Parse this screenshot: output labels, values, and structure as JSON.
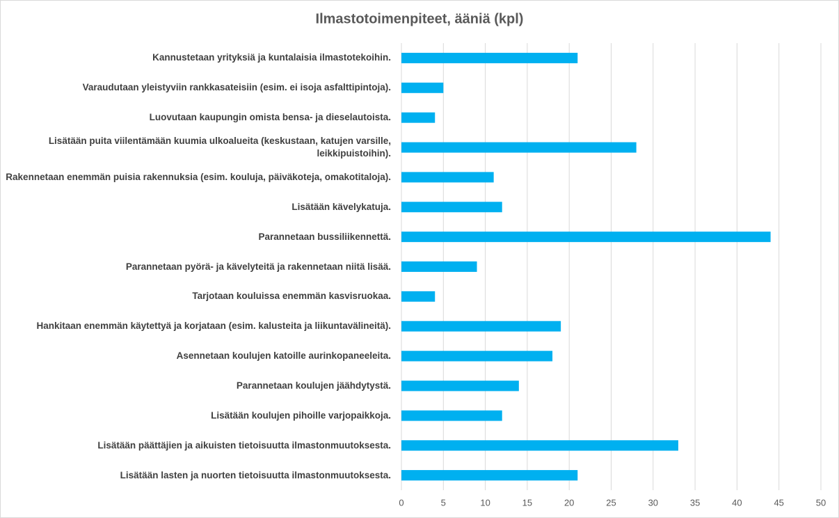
{
  "chart_data": {
    "type": "bar",
    "orientation": "horizontal",
    "title": "Ilmastotoimenpiteet, ääniä (kpl)",
    "categories": [
      "Kannustetaan yrityksiä ja kuntalaisia ilmastotekoihin.",
      "Varaudutaan yleistyviin rankkasateisiin (esim. ei isoja asfalttipintoja).",
      "Luovutaan kaupungin omista bensa- ja dieselautoista.",
      "Lisätään puita viilentämään kuumia ulkoalueita (keskustaan, katujen varsille, leikkipuistoihin).",
      "Rakennetaan enemmän puisia rakennuksia (esim. kouluja, päiväkoteja, omakotitaloja).",
      "Lisätään kävelykatuja.",
      "Parannetaan bussiliikennettä.",
      "Parannetaan pyörä- ja kävelyteitä ja rakennetaan niitä lisää.",
      "Tarjotaan kouluissa enemmän kasvisruokaa.",
      "Hankitaan enemmän käytettyä ja korjataan (esim. kalusteita ja liikuntavälineitä).",
      "Asennetaan koulujen katoille aurinkopaneeleita.",
      "Parannetaan koulujen jäähdytystä.",
      "Lisätään koulujen pihoille varjopaikkoja.",
      "Lisätään päättäjien ja aikuisten tietoisuutta ilmastonmuutoksesta.",
      "Lisätään lasten ja nuorten tietoisuutta ilmastonmuutoksesta."
    ],
    "values": [
      21,
      5,
      4,
      28,
      11,
      12,
      44,
      9,
      4,
      19,
      18,
      14,
      12,
      33,
      21
    ],
    "color": "#00b0f0",
    "xlim": [
      0,
      50
    ],
    "xticks": [
      0,
      5,
      10,
      15,
      20,
      25,
      30,
      35,
      40,
      45,
      50
    ],
    "grid": true
  }
}
